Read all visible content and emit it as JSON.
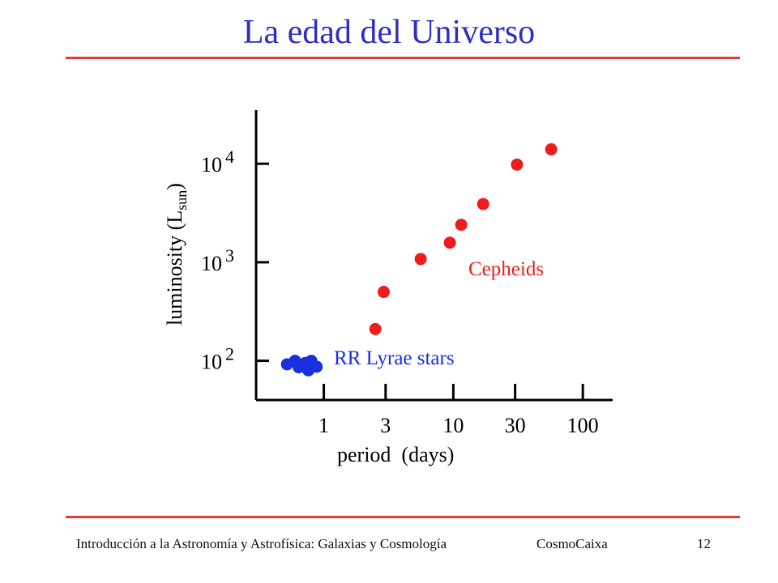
{
  "slide": {
    "title": "La edad del Universo",
    "footer_course": "Introducción a la Astronomía y Astrofísica: Galaxias y Cosmología",
    "footer_org": "CosmoCaixa",
    "footer_page": "12"
  },
  "colors": {
    "title": "#2e2ec4",
    "rule": "#e33a3a",
    "cepheids": "#ee1c1c",
    "rr_lyrae": "#1a2fe0"
  },
  "chart_data": {
    "type": "scatter",
    "xlabel": "period  (days)",
    "ylabel": "luminosity (L",
    "ylabel_sub": "sun",
    "ylabel_close": ")",
    "x_scale": "log",
    "y_scale": "log",
    "xlim": [
      0.3,
      170
    ],
    "ylim": [
      40,
      35000
    ],
    "x_ticks": [
      {
        "value": 1,
        "label": "1"
      },
      {
        "value": 3,
        "label": "3"
      },
      {
        "value": 10,
        "label": "10"
      },
      {
        "value": 30,
        "label": "30"
      },
      {
        "value": 100,
        "label": "100"
      }
    ],
    "y_ticks": [
      {
        "value": 100,
        "base": "10",
        "exp": "2"
      },
      {
        "value": 1000,
        "base": "10",
        "exp": "3"
      },
      {
        "value": 10000,
        "base": "10",
        "exp": "4"
      }
    ],
    "grid": false,
    "series": [
      {
        "name": "Cepheids",
        "color": "#ee1c1c",
        "points": [
          {
            "x": 2.5,
            "y": 210
          },
          {
            "x": 2.9,
            "y": 500
          },
          {
            "x": 5.6,
            "y": 1080
          },
          {
            "x": 9.4,
            "y": 1580
          },
          {
            "x": 11.5,
            "y": 2400
          },
          {
            "x": 17,
            "y": 3900
          },
          {
            "x": 31,
            "y": 9800
          },
          {
            "x": 57,
            "y": 14000
          }
        ]
      },
      {
        "name": "RR Lyrae stars",
        "color": "#1a2fe0",
        "points": [
          {
            "x": 0.52,
            "y": 92
          },
          {
            "x": 0.6,
            "y": 100
          },
          {
            "x": 0.64,
            "y": 86
          },
          {
            "x": 0.72,
            "y": 95
          },
          {
            "x": 0.76,
            "y": 80
          },
          {
            "x": 0.8,
            "y": 100
          },
          {
            "x": 0.88,
            "y": 87
          }
        ]
      }
    ]
  }
}
